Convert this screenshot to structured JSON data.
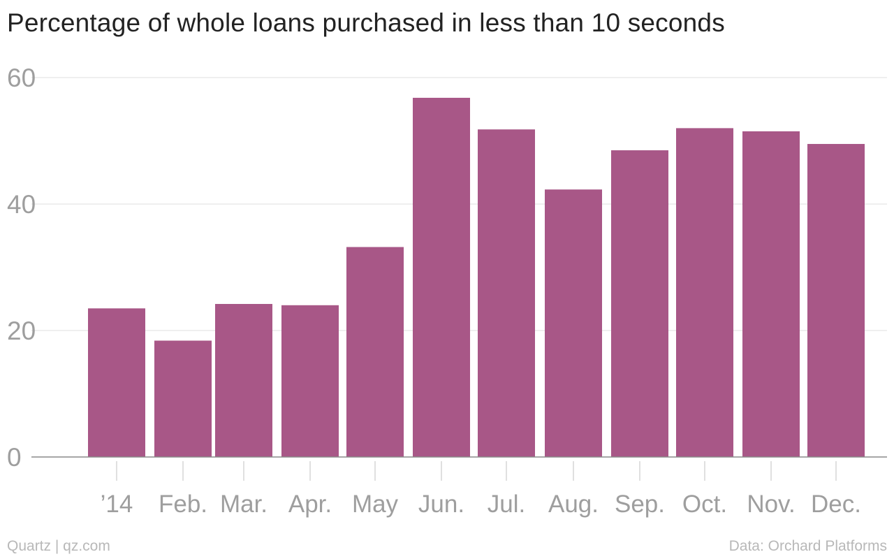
{
  "chart_data": {
    "type": "bar",
    "title": "Percentage of whole loans purchased in less than 10 seconds",
    "xlabel": "",
    "ylabel": "",
    "categories": [
      "’14",
      "Feb.",
      "Mar.",
      "Apr.",
      "May",
      "Jun.",
      "Jul.",
      "Aug.",
      "Sep.",
      "Oct.",
      "Nov.",
      "Dec."
    ],
    "values": [
      23.5,
      18.4,
      24.2,
      24.0,
      33.2,
      56.8,
      51.8,
      42.3,
      48.5,
      52.0,
      51.5,
      49.5
    ],
    "ylim": [
      0,
      60
    ],
    "yticks": [
      "0",
      "20",
      "40",
      "60"
    ],
    "grid": true,
    "legend": "none",
    "bar_color": "#a85787",
    "source_left": "Quartz | qz.com",
    "source_right": "Data: Orchard Platforms"
  }
}
